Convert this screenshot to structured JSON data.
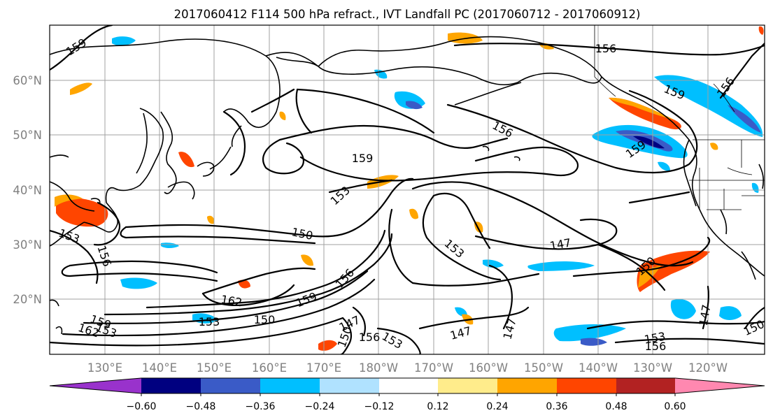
{
  "title": "2017060412 F114 500 hPa refract., IVT Landfall PC (2017060712 - 2017060912)",
  "lat_labels": [
    "60°N",
    "50°N",
    "40°N",
    "30°N",
    "20°N"
  ],
  "lon_labels": [
    "130°E",
    "140°E",
    "150°E",
    "160°E",
    "170°E",
    "180°W",
    "170°W",
    "160°W",
    "150°W",
    "140°W",
    "130°W",
    "120°W"
  ],
  "colorbar": {
    "colors": [
      "#9932cc",
      "#000080",
      "#3a5bc7",
      "#00bfff",
      "#b0e2ff",
      "#ffffff",
      "#ffec8b",
      "#ffa500",
      "#ff4500",
      "#b22222",
      "#ff88b0"
    ],
    "tick_labels": [
      "−0.60",
      "−0.48",
      "−0.36",
      "−0.24",
      "−0.12",
      "0.12",
      "0.24",
      "0.36",
      "0.48",
      "0.60"
    ]
  },
  "contour_labels": {
    "l159_nw": "159",
    "l156_ne": "156",
    "l159_ne": "159",
    "l156_ne2": "156",
    "l156_mid": "156",
    "l159_mid": "159",
    "l159_wc": "159",
    "l153_c": "153",
    "l153_w": "153",
    "l156_w": "156",
    "l150_c": "150",
    "l153_e": "153",
    "l147_e": "147",
    "l150_e": "150",
    "l162_w": "162",
    "l159_c": "159",
    "l156_c": "156",
    "l150_s": "150",
    "l153_s": "153",
    "l147_s1": "147",
    "l150_s2": "150",
    "l156_s": "156",
    "l153_s2": "153",
    "l147_s2": "147",
    "l147_s3": "147",
    "l153_se": "153",
    "l156_se": "156",
    "l150_se": "150",
    "l147_se": "147",
    "l159_sw": "159",
    "l162_sw": "162",
    "l153_sw": "153"
  }
}
